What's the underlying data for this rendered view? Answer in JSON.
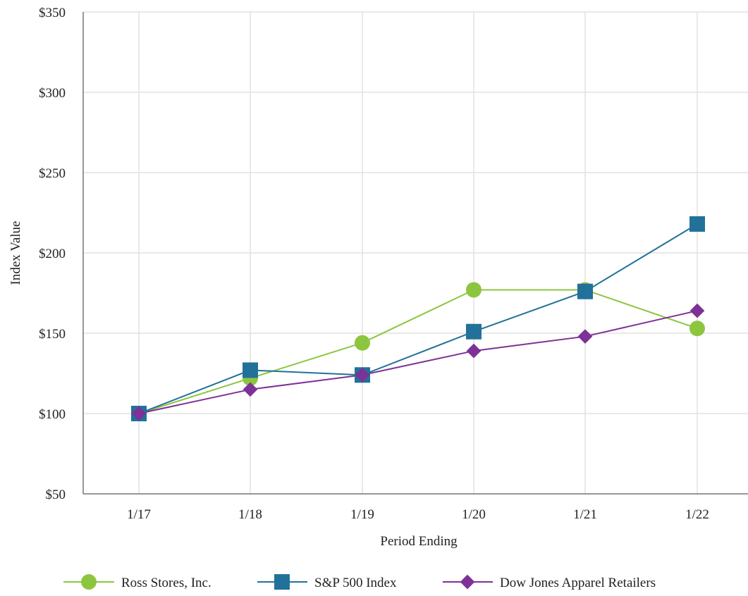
{
  "chart_data": {
    "type": "line",
    "xlabel": "Period Ending",
    "ylabel": "Index Value",
    "categories": [
      "1/17",
      "1/18",
      "1/19",
      "1/20",
      "1/21",
      "1/22"
    ],
    "ylim": [
      50,
      350
    ],
    "yticks": [
      50,
      100,
      150,
      200,
      250,
      300,
      350
    ],
    "ytick_labels": [
      "$50",
      "$100",
      "$150",
      "$200",
      "$250",
      "$300",
      "$350"
    ],
    "grid": true,
    "legend_position": "bottom",
    "series": [
      {
        "name": "Ross Stores, Inc.",
        "color": "#8cc63f",
        "marker": "circle",
        "values": [
          100,
          122,
          144,
          177,
          177,
          153
        ]
      },
      {
        "name": "S&P 500 Index",
        "color": "#22719a",
        "marker": "square",
        "values": [
          100,
          127,
          124,
          151,
          176,
          218
        ]
      },
      {
        "name": "Dow Jones Apparel Retailers",
        "color": "#7e3196",
        "marker": "diamond",
        "values": [
          100,
          115,
          124,
          139,
          148,
          164
        ]
      }
    ]
  }
}
